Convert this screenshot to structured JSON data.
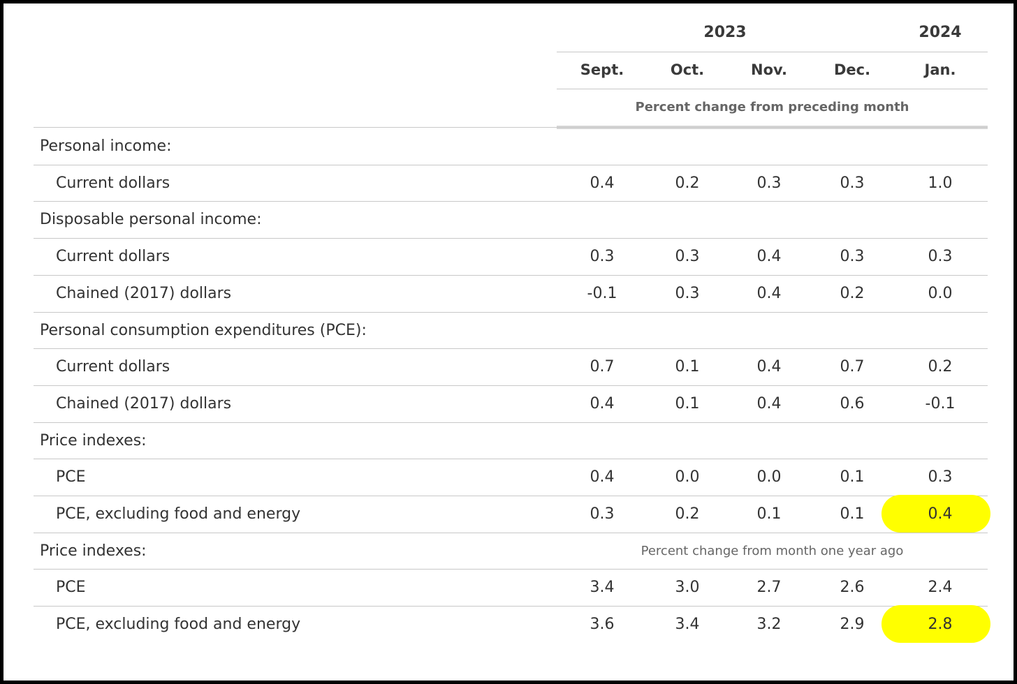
{
  "header": {
    "years": [
      {
        "label": "2023",
        "col": 2
      },
      {
        "label": "2024",
        "col": 4
      }
    ],
    "months": [
      "Sept.",
      "Oct.",
      "Nov.",
      "Dec.",
      "Jan."
    ],
    "subheading_monthly": "Percent change from preceding month"
  },
  "sections": [
    {
      "label": "Personal income:",
      "rows": [
        {
          "label": "Current dollars",
          "values": [
            "0.4",
            "0.2",
            "0.3",
            "0.3",
            "1.0"
          ]
        }
      ]
    },
    {
      "label": "Disposable personal income:",
      "rows": [
        {
          "label": "Current dollars",
          "values": [
            "0.3",
            "0.3",
            "0.4",
            "0.3",
            "0.3"
          ]
        },
        {
          "label": "Chained (2017) dollars",
          "values": [
            "-0.1",
            "0.3",
            "0.4",
            "0.2",
            "0.0"
          ]
        }
      ]
    },
    {
      "label": "Personal consumption expenditures (PCE):",
      "rows": [
        {
          "label": "Current dollars",
          "values": [
            "0.7",
            "0.1",
            "0.4",
            "0.7",
            "0.2"
          ]
        },
        {
          "label": "Chained (2017) dollars",
          "values": [
            "0.4",
            "0.1",
            "0.4",
            "0.6",
            "-0.1"
          ]
        }
      ]
    },
    {
      "label": "Price indexes:",
      "rows": [
        {
          "label": "PCE",
          "values": [
            "0.4",
            "0.0",
            "0.0",
            "0.1",
            "0.3"
          ]
        },
        {
          "label": "PCE, excluding food and energy",
          "values": [
            "0.3",
            "0.2",
            "0.1",
            "0.1",
            "0.4"
          ],
          "highlight_col": 4
        }
      ]
    },
    {
      "label": "Price indexes:",
      "note": "Percent change from month one year ago",
      "rows": [
        {
          "label": "PCE",
          "values": [
            "3.4",
            "3.0",
            "2.7",
            "2.6",
            "2.4"
          ]
        },
        {
          "label": "PCE, excluding food and energy",
          "values": [
            "3.6",
            "3.4",
            "3.2",
            "2.9",
            "2.8"
          ],
          "highlight_col": 4
        }
      ]
    }
  ],
  "highlight_color": "#FFFF00"
}
